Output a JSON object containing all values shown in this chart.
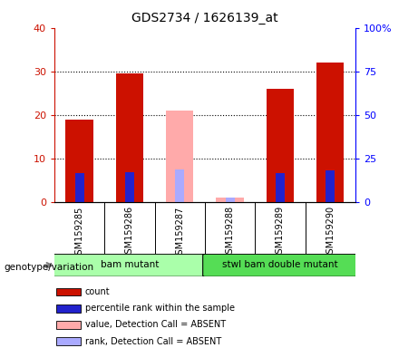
{
  "title": "GDS2734 / 1626139_at",
  "samples": [
    "GSM159285",
    "GSM159286",
    "GSM159287",
    "GSM159288",
    "GSM159289",
    "GSM159290"
  ],
  "count_values": [
    19.0,
    29.5,
    null,
    null,
    26.0,
    32.0
  ],
  "rank_values": [
    16.5,
    17.0,
    null,
    null,
    16.5,
    18.0
  ],
  "absent_value_values": [
    null,
    null,
    21.0,
    null,
    null,
    null
  ],
  "absent_rank_values": [
    null,
    null,
    18.5,
    2.5,
    null,
    null
  ],
  "absent_count_values": [
    null,
    null,
    null,
    1.0,
    null,
    null
  ],
  "ylim_left": [
    0,
    40
  ],
  "ylim_right": [
    0,
    100
  ],
  "yticks_left": [
    0,
    10,
    20,
    30,
    40
  ],
  "yticks_right": [
    0,
    25,
    50,
    75,
    100
  ],
  "ytick_labels_left": [
    "0",
    "10",
    "20",
    "30",
    "40"
  ],
  "ytick_labels_right": [
    "0",
    "25",
    "50",
    "75",
    "100%"
  ],
  "groups": [
    {
      "label": "bam mutant",
      "samples": [
        "GSM159285",
        "GSM159286",
        "GSM159287"
      ],
      "color": "#aaffaa"
    },
    {
      "label": "stwl bam double mutant",
      "samples": [
        "GSM159288",
        "GSM159289",
        "GSM159290"
      ],
      "color": "#55dd55"
    }
  ],
  "group_label": "genotype/variation",
  "color_count": "#cc1100",
  "color_rank": "#2222cc",
  "color_absent_value": "#ffaaaa",
  "color_absent_rank": "#aaaaff",
  "legend_items": [
    {
      "color": "#cc1100",
      "label": "count"
    },
    {
      "color": "#2222cc",
      "label": "percentile rank within the sample"
    },
    {
      "color": "#ffaaaa",
      "label": "value, Detection Call = ABSENT"
    },
    {
      "color": "#aaaaff",
      "label": "rank, Detection Call = ABSENT"
    }
  ],
  "background_group_area": "#cccccc"
}
